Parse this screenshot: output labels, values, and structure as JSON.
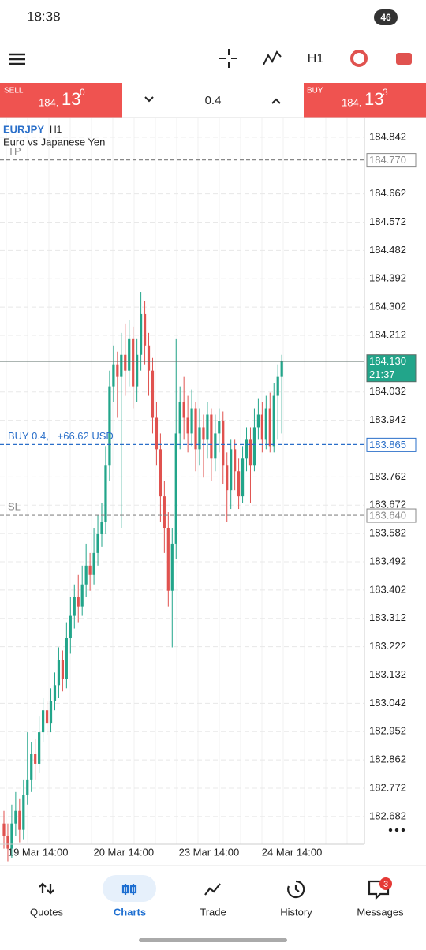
{
  "status_bar": {
    "time": "18:38",
    "battery": "46"
  },
  "toolbar": {
    "timeframe": "H1"
  },
  "trade_bar": {
    "sell_label": "SELL",
    "sell_price": {
      "prefix": "184.",
      "big": "13",
      "sup": "0"
    },
    "volume": "0.4",
    "buy_label": "BUY",
    "buy_price": {
      "prefix": "184.",
      "big": "13",
      "sup": "3"
    }
  },
  "chart": {
    "symbol": "EURJPY",
    "timeframe": "H1",
    "description": "Euro vs Japanese Yen",
    "ylim": [
      182.594,
      184.902
    ],
    "yticks": [
      184.842,
      184.662,
      184.572,
      184.482,
      184.392,
      184.302,
      184.212,
      184.032,
      183.942,
      183.762,
      183.672,
      183.582,
      183.492,
      183.402,
      183.312,
      183.222,
      183.132,
      183.042,
      182.952,
      182.862,
      182.772,
      182.682
    ],
    "x_labels": [
      {
        "index": 8.7,
        "label": "19 Mar 14:00"
      },
      {
        "index": 30.6,
        "label": "20 Mar 14:00"
      },
      {
        "index": 52.4,
        "label": "23 Mar 14:00"
      },
      {
        "index": 73.6,
        "label": "24 Mar 14:00"
      }
    ],
    "up_color": "#22a58a",
    "down_color": "#e0524f",
    "candles": [
      [
        182.66,
        182.7,
        182.58,
        182.62
      ],
      [
        182.62,
        182.66,
        182.54,
        182.58
      ],
      [
        182.58,
        182.72,
        182.55,
        182.66
      ],
      [
        182.66,
        182.76,
        182.62,
        182.7
      ],
      [
        182.7,
        182.74,
        182.6,
        182.64
      ],
      [
        182.64,
        182.8,
        182.61,
        182.75
      ],
      [
        182.75,
        182.95,
        182.72,
        182.8
      ],
      [
        182.8,
        182.92,
        182.76,
        182.88
      ],
      [
        182.88,
        182.93,
        182.8,
        182.85
      ],
      [
        182.85,
        183.0,
        182.82,
        182.95
      ],
      [
        182.95,
        183.06,
        182.92,
        183.02
      ],
      [
        183.02,
        183.05,
        182.94,
        182.98
      ],
      [
        182.98,
        183.09,
        182.95,
        183.05
      ],
      [
        183.05,
        183.14,
        183.02,
        183.1
      ],
      [
        183.1,
        183.22,
        183.06,
        183.18
      ],
      [
        183.18,
        183.21,
        183.08,
        183.12
      ],
      [
        183.12,
        183.3,
        183.09,
        183.25
      ],
      [
        183.25,
        183.38,
        183.2,
        183.32
      ],
      [
        183.32,
        183.42,
        183.28,
        183.38
      ],
      [
        183.38,
        183.45,
        183.3,
        183.35
      ],
      [
        183.35,
        183.48,
        183.32,
        183.42
      ],
      [
        183.42,
        183.55,
        183.38,
        183.48
      ],
      [
        183.48,
        183.52,
        183.4,
        183.45
      ],
      [
        183.45,
        183.6,
        183.42,
        183.52
      ],
      [
        183.52,
        183.64,
        183.48,
        183.58
      ],
      [
        183.58,
        183.68,
        183.54,
        183.62
      ],
      [
        183.62,
        183.86,
        183.58,
        183.8
      ],
      [
        183.8,
        184.1,
        183.75,
        184.05
      ],
      [
        184.05,
        184.18,
        184.0,
        184.12
      ],
      [
        184.12,
        184.16,
        183.95,
        184.08
      ],
      [
        184.08,
        184.22,
        183.6,
        184.15
      ],
      [
        184.15,
        184.25,
        184.02,
        184.1
      ],
      [
        184.1,
        184.26,
        184.05,
        184.2
      ],
      [
        184.2,
        184.24,
        183.98,
        184.05
      ],
      [
        184.05,
        184.2,
        184.0,
        184.15
      ],
      [
        184.15,
        184.35,
        184.1,
        184.28
      ],
      [
        184.28,
        184.32,
        184.12,
        184.18
      ],
      [
        184.18,
        184.22,
        184.02,
        184.1
      ],
      [
        184.1,
        184.14,
        183.9,
        183.95
      ],
      [
        183.95,
        184.0,
        183.8,
        183.85
      ],
      [
        183.85,
        183.9,
        183.62,
        183.7
      ],
      [
        183.7,
        183.75,
        183.52,
        183.6
      ],
      [
        183.6,
        183.65,
        183.35,
        183.4
      ],
      [
        183.4,
        183.6,
        183.22,
        183.55
      ],
      [
        183.55,
        184.2,
        183.5,
        183.9
      ],
      [
        183.9,
        184.05,
        183.85,
        184.0
      ],
      [
        184.0,
        184.08,
        183.88,
        183.95
      ],
      [
        183.95,
        184.02,
        183.84,
        183.9
      ],
      [
        183.9,
        184.04,
        183.86,
        183.98
      ],
      [
        183.98,
        184.0,
        183.78,
        183.85
      ],
      [
        183.85,
        183.98,
        183.8,
        183.92
      ],
      [
        183.92,
        183.96,
        183.76,
        183.88
      ],
      [
        183.88,
        184.0,
        183.82,
        183.96
      ],
      [
        183.96,
        183.98,
        183.75,
        183.82
      ],
      [
        183.82,
        183.96,
        183.78,
        183.9
      ],
      [
        183.9,
        183.98,
        183.84,
        183.94
      ],
      [
        183.94,
        183.97,
        183.74,
        183.8
      ],
      [
        183.8,
        183.84,
        183.62,
        183.72
      ],
      [
        183.72,
        183.88,
        183.66,
        183.85
      ],
      [
        183.85,
        183.88,
        183.72,
        183.78
      ],
      [
        183.78,
        183.82,
        183.66,
        183.7
      ],
      [
        183.7,
        183.86,
        183.68,
        183.82
      ],
      [
        183.82,
        183.92,
        183.78,
        183.88
      ],
      [
        183.88,
        183.92,
        183.68,
        183.8
      ],
      [
        183.8,
        183.98,
        183.78,
        183.92
      ],
      [
        183.92,
        184.01,
        183.88,
        183.96
      ],
      [
        183.96,
        184.0,
        183.84,
        183.88
      ],
      [
        183.88,
        184.02,
        183.85,
        183.98
      ],
      [
        183.98,
        184.03,
        183.84,
        183.86
      ],
      [
        183.86,
        184.06,
        183.84,
        184.02
      ],
      [
        184.02,
        184.12,
        183.88,
        184.08
      ],
      [
        184.08,
        184.15,
        183.9,
        184.13
      ]
    ],
    "levels": [
      {
        "name": "TP",
        "value": 184.77,
        "label": "184.770",
        "color": "#888888",
        "style": "dashed"
      },
      {
        "value": 184.13,
        "label": "184.130",
        "countdown": "21:37",
        "color": "#5a6b66",
        "style": "solid"
      },
      {
        "name": "BUY 0.4,   +66.62 USD",
        "value": 183.865,
        "label": "183.865",
        "color": "#2a6fc9",
        "style": "dashed"
      },
      {
        "name": "SL",
        "value": 183.64,
        "label": "183.640",
        "color": "#888888",
        "style": "dashed"
      }
    ]
  },
  "nav": {
    "items": [
      "Quotes",
      "Charts",
      "Trade",
      "History",
      "Messages"
    ],
    "active": "Charts",
    "badge": "3"
  }
}
